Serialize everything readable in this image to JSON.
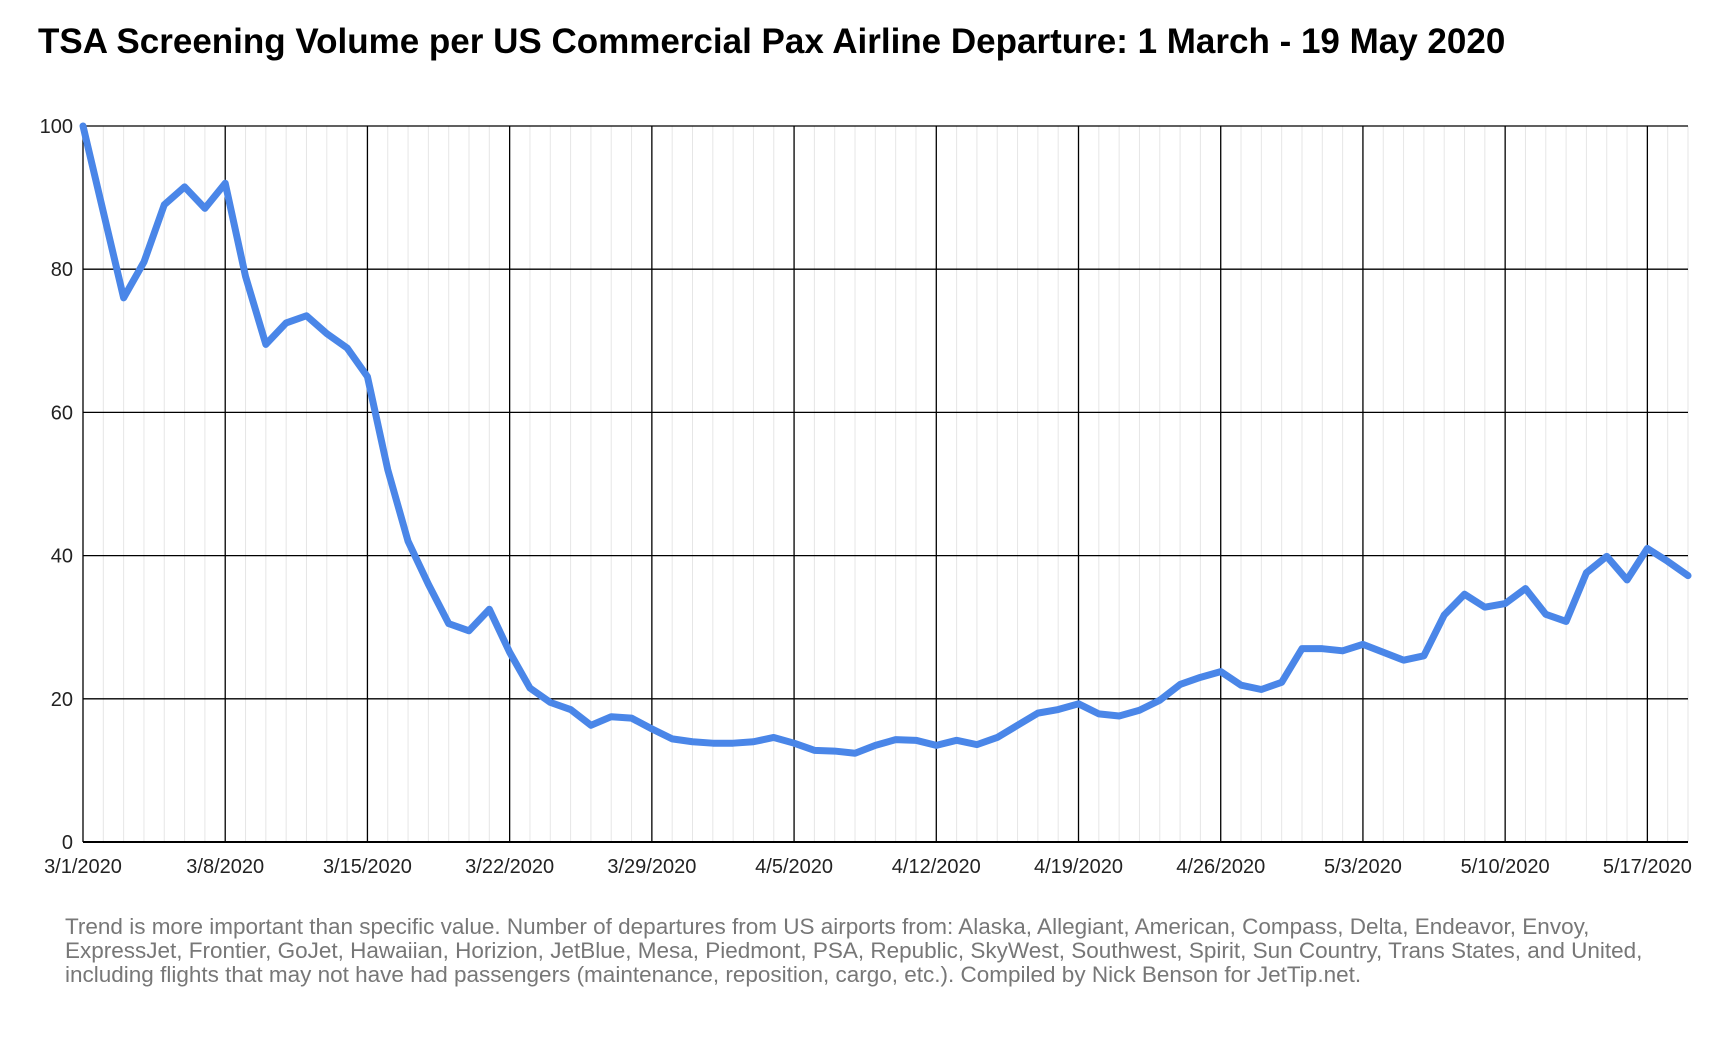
{
  "title": "TSA Screening Volume per US Commercial Pax Airline Departure: 1 March - 19 May 2020",
  "footnote": "Trend is more important than specific value. Number of departures from US airports from: Alaska, Allegiant, American, Compass, Delta, Endeavor, Envoy, ExpressJet, Frontier, GoJet, Hawaiian, Horizion, JetBlue, Mesa, Piedmont, PSA, Republic, SkyWest, Southwest, Spirit, Sun Country, Trans States, and United, including flights that may not have had passengers (maintenance, reposition, cargo, etc.). Compiled by Nick Benson for JetTip.net.",
  "chart_data": {
    "type": "line",
    "title": "TSA Screening Volume per US Commercial Pax Airline Departure: 1 March - 19 May 2020",
    "xlabel": "",
    "ylabel": "",
    "ylim": [
      0,
      100
    ],
    "yticks": [
      0,
      20,
      40,
      60,
      80,
      100
    ],
    "xticks": [
      "3/1/2020",
      "3/8/2020",
      "3/15/2020",
      "3/22/2020",
      "3/29/2020",
      "4/5/2020",
      "4/12/2020",
      "4/19/2020",
      "4/26/2020",
      "5/3/2020",
      "5/10/2020",
      "5/17/2020"
    ],
    "x_start": "3/1/2020",
    "x_end": "5/19/2020",
    "grid": true,
    "line_color": "#4a86e8",
    "series": [
      {
        "values": [
          100,
          88,
          76,
          81,
          89,
          91.5,
          88.5,
          92,
          79,
          69.5,
          72.5,
          73.5,
          71,
          69,
          65,
          52,
          42,
          36,
          30.5,
          29.5,
          32.5,
          26.5,
          21.5,
          19.5,
          18.5,
          16.3,
          17.5,
          17.3,
          15.8,
          14.4,
          14,
          13.8,
          13.8,
          14,
          14.6,
          13.8,
          12.8,
          12.7,
          12.4,
          13.5,
          14.3,
          14.2,
          13.5,
          14.2,
          13.6,
          14.6,
          16.3,
          18,
          18.5,
          19.3,
          17.9,
          17.6,
          18.4,
          19.8,
          22,
          23,
          23.8,
          21.9,
          21.3,
          22.3,
          27,
          27,
          26.7,
          27.6,
          26.5,
          25.4,
          26,
          31.7,
          34.6,
          32.8,
          33.3,
          35.4,
          31.8,
          30.8,
          37.6,
          39.9,
          36.6,
          41,
          39.2,
          37.2
        ]
      }
    ]
  }
}
